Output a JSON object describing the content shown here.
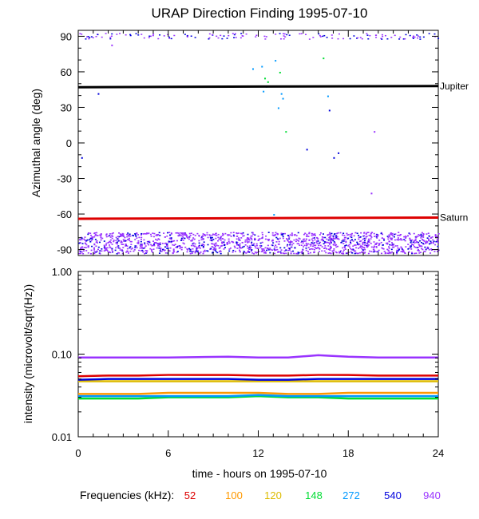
{
  "title": "URAP Direction Finding  1995-07-10",
  "xlabel": "time - hours on 1995-07-10",
  "legend_label": "Frequencies (kHz):",
  "chart_data": [
    {
      "type": "scatter",
      "ylabel": "Azimuthal angle (deg)",
      "xlim": [
        0,
        24
      ],
      "ylim": [
        -95,
        95
      ],
      "x_ticks": [
        0,
        6,
        12,
        18,
        24
      ],
      "y_ticks": [
        90,
        60,
        30,
        0,
        -30,
        -60,
        -90
      ],
      "reference_lines": [
        {
          "name": "Jupiter",
          "color": "#000000",
          "points": [
            [
              0,
              47
            ],
            [
              12,
              47.6
            ],
            [
              24,
              48
            ]
          ]
        },
        {
          "name": "Saturn",
          "color": "#dd0000",
          "points": [
            [
              0,
              -64
            ],
            [
              24,
              -63
            ]
          ]
        }
      ],
      "point_bands": [
        {
          "note": "dense band",
          "y_range": [
            -93,
            -75
          ],
          "colors": [
            "#9933ff",
            "#0000dd"
          ]
        },
        {
          "note": "top band",
          "y_range": [
            88,
            93
          ],
          "colors": [
            "#9933ff",
            "#0000dd"
          ]
        }
      ]
    },
    {
      "type": "line",
      "ylabel": "intensity (microvolt/sqrt(Hz))",
      "scale": "log",
      "xlim": [
        0,
        24
      ],
      "ylim": [
        0.01,
        1.0
      ],
      "x_ticks": [
        0,
        6,
        12,
        18,
        24
      ],
      "y_ticks": [
        1.0,
        0.1,
        0.01
      ],
      "y_tick_labels": [
        "1.00",
        "0.10",
        "0.01"
      ],
      "series": [
        {
          "name": "52",
          "color": "#dd0000",
          "x": [
            0,
            2,
            4,
            6,
            8,
            10,
            12,
            14,
            16,
            18,
            20,
            22,
            24
          ],
          "values": [
            0.054,
            0.055,
            0.055,
            0.056,
            0.056,
            0.056,
            0.055,
            0.055,
            0.056,
            0.056,
            0.055,
            0.055,
            0.055
          ]
        },
        {
          "name": "100",
          "color": "#ff9900",
          "x": [
            0,
            2,
            4,
            6,
            8,
            10,
            12,
            14,
            16,
            18,
            20,
            22,
            24
          ],
          "values": [
            0.033,
            0.033,
            0.033,
            0.034,
            0.034,
            0.034,
            0.034,
            0.033,
            0.033,
            0.034,
            0.034,
            0.034,
            0.034
          ]
        },
        {
          "name": "120",
          "color": "#ddbb00",
          "x": [
            0,
            2,
            4,
            6,
            8,
            10,
            12,
            14,
            16,
            18,
            20,
            22,
            24
          ],
          "values": [
            0.047,
            0.047,
            0.047,
            0.047,
            0.047,
            0.047,
            0.047,
            0.047,
            0.047,
            0.047,
            0.047,
            0.047,
            0.047
          ]
        },
        {
          "name": "148",
          "color": "#00dd33",
          "x": [
            0,
            2,
            4,
            6,
            8,
            10,
            12,
            14,
            16,
            18,
            20,
            22,
            24
          ],
          "values": [
            0.029,
            0.029,
            0.029,
            0.03,
            0.03,
            0.03,
            0.031,
            0.03,
            0.03,
            0.029,
            0.029,
            0.029,
            0.029
          ]
        },
        {
          "name": "272",
          "color": "#0099ff",
          "x": [
            0,
            2,
            4,
            6,
            8,
            10,
            12,
            14,
            16,
            18,
            20,
            22,
            24
          ],
          "values": [
            0.031,
            0.031,
            0.031,
            0.031,
            0.031,
            0.031,
            0.032,
            0.031,
            0.031,
            0.031,
            0.031,
            0.031,
            0.031
          ]
        },
        {
          "name": "540",
          "color": "#0000dd",
          "x": [
            0,
            2,
            4,
            6,
            8,
            10,
            12,
            14,
            16,
            18,
            20,
            22,
            24
          ],
          "values": [
            0.049,
            0.05,
            0.05,
            0.05,
            0.05,
            0.05,
            0.049,
            0.049,
            0.05,
            0.05,
            0.05,
            0.05,
            0.05
          ]
        },
        {
          "name": "940",
          "color": "#9933ff",
          "x": [
            0,
            2,
            4,
            6,
            8,
            10,
            12,
            14,
            16,
            18,
            20,
            22,
            24
          ],
          "values": [
            0.091,
            0.091,
            0.091,
            0.091,
            0.092,
            0.093,
            0.091,
            0.091,
            0.097,
            0.093,
            0.091,
            0.091,
            0.091
          ]
        }
      ]
    }
  ]
}
